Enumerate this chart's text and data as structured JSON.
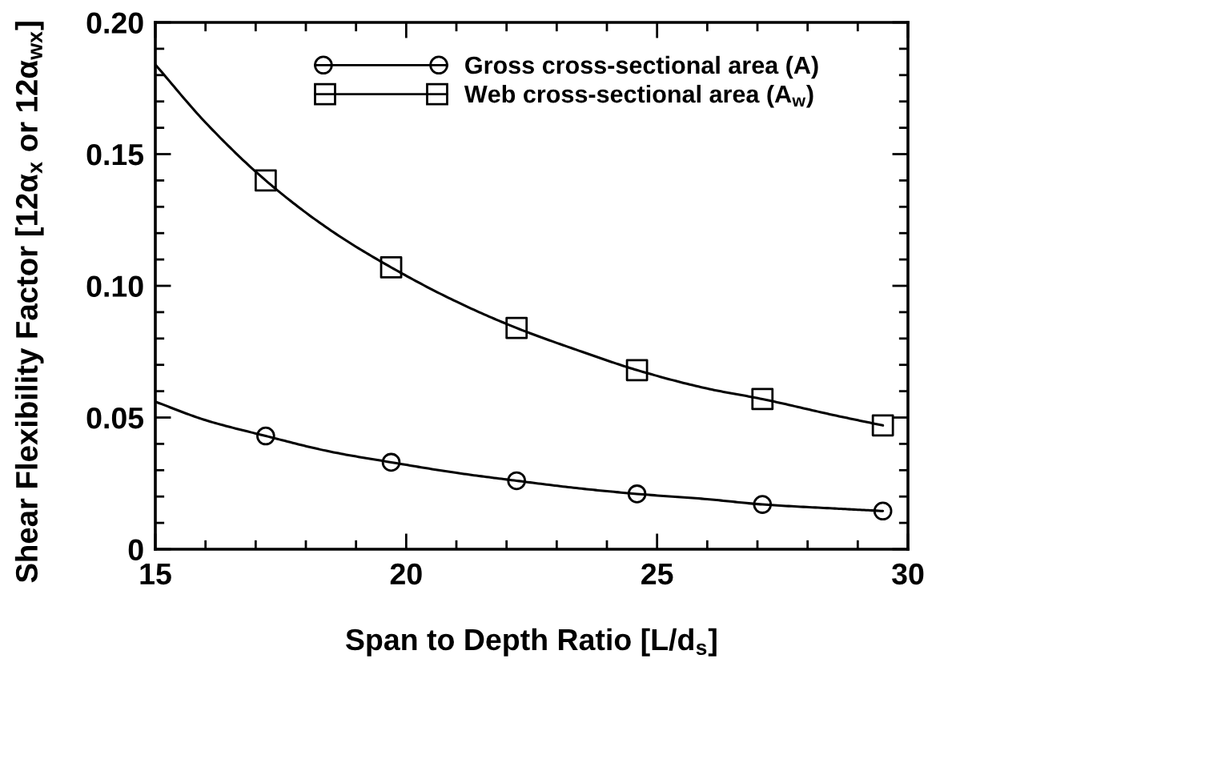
{
  "chart_data": {
    "type": "line",
    "xlabel": "Span to Depth Ratio [L/d$_{s}$]",
    "ylabel": "Shear Flexibility Factor [12α$_{x}$ or 12α$_{wx}$]",
    "xlim": [
      15,
      30
    ],
    "ylim": [
      0,
      0.2
    ],
    "xticks": [
      15,
      {
        "value": 16,
        "label": null
      },
      {
        "value": 17,
        "label": null
      },
      {
        "value": 18,
        "label": null
      },
      {
        "value": 19,
        "label": null
      },
      20,
      {
        "value": 21,
        "label": null
      },
      {
        "value": 22,
        "label": null
      },
      {
        "value": 23,
        "label": null
      },
      {
        "value": 24,
        "label": null
      },
      25,
      {
        "value": 26,
        "label": null
      },
      {
        "value": 27,
        "label": null
      },
      {
        "value": 28,
        "label": null
      },
      {
        "value": 29,
        "label": null
      },
      30
    ],
    "yticks": [
      0,
      {
        "value": 0.01,
        "label": null
      },
      {
        "value": 0.02,
        "label": null
      },
      {
        "value": 0.03,
        "label": null
      },
      {
        "value": 0.04,
        "label": null
      },
      0.05,
      {
        "value": 0.06,
        "label": null
      },
      {
        "value": 0.07,
        "label": null
      },
      {
        "value": 0.08,
        "label": null
      },
      {
        "value": 0.09,
        "label": null
      },
      {
        "value": 0.1,
        "label": "0.10"
      },
      {
        "value": 0.11,
        "label": null
      },
      {
        "value": 0.12,
        "label": null
      },
      {
        "value": 0.13,
        "label": null
      },
      {
        "value": 0.14,
        "label": null
      },
      0.15,
      {
        "value": 0.16,
        "label": null
      },
      {
        "value": 0.17,
        "label": null
      },
      {
        "value": 0.18,
        "label": null
      },
      {
        "value": 0.19,
        "label": null
      },
      {
        "value": 0.2,
        "label": "0.20"
      }
    ],
    "legend": "top right",
    "line_style": "solid",
    "series": [
      {
        "name": "Gross cross-sectional area (A)",
        "type": "scatter",
        "marker": "circle",
        "color": "#000000",
        "x": [
          17.2,
          19.7,
          22.2,
          24.6,
          27.1,
          29.5
        ],
        "values": [
          0.043,
          0.033,
          0.026,
          0.021,
          0.017,
          0.0145
        ]
      },
      {
        "marker": "none",
        "color": "#000000",
        "x": [
          15,
          16,
          17.2,
          18.5,
          19.7,
          21,
          22.2,
          23.5,
          24.6,
          26,
          27.1,
          28.5,
          29.5
        ],
        "values": [
          0.056,
          0.049,
          0.043,
          0.037,
          0.033,
          0.029,
          0.026,
          0.023,
          0.021,
          0.019,
          0.017,
          0.0155,
          0.0145
        ]
      },
      {
        "name": "Web cross-sectional area (A$_{w}$)",
        "type": "scatter",
        "marker": "square",
        "color": "#000000",
        "x": [
          17.2,
          19.7,
          22.2,
          24.6,
          27.1,
          29.5
        ],
        "values": [
          0.14,
          0.107,
          0.084,
          0.068,
          0.057,
          0.047
        ]
      },
      {
        "marker": "none",
        "color": "#000000",
        "x": [
          15,
          16,
          17.2,
          18.5,
          19.7,
          21,
          22.2,
          23.5,
          24.6,
          26,
          27.1,
          28.5,
          29.5
        ],
        "values": [
          0.184,
          0.162,
          0.14,
          0.121,
          0.107,
          0.094,
          0.084,
          0.075,
          0.068,
          0.061,
          0.057,
          0.051,
          0.047
        ]
      }
    ]
  }
}
